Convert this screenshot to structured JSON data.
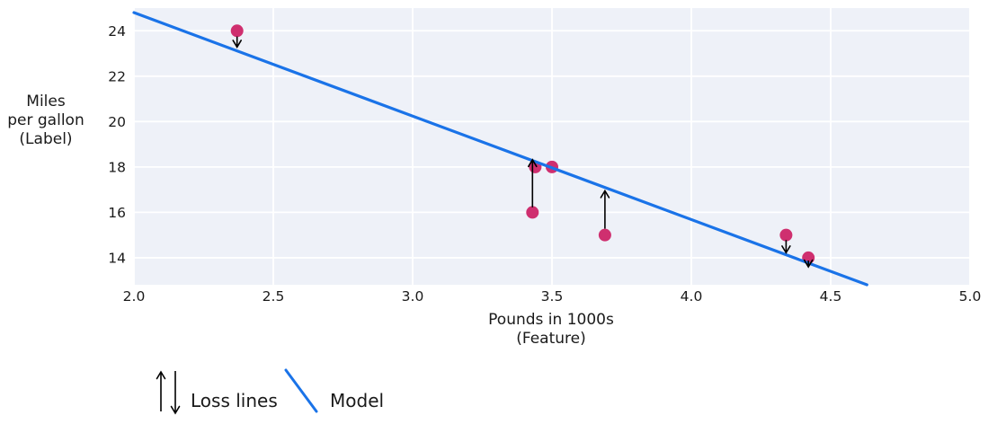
{
  "chart_data": {
    "type": "scatter",
    "title": "",
    "xlabel_lines": [
      "Pounds in 1000s",
      "(Feature)"
    ],
    "ylabel_lines": [
      "Miles",
      "per gallon",
      "(Label)"
    ],
    "xlim": [
      2.0,
      5.0
    ],
    "ylim": [
      12.81,
      25.0
    ],
    "grid": true,
    "xticks": [
      {
        "value": 2.0,
        "label": "2.0"
      },
      {
        "value": 2.5,
        "label": "2.5"
      },
      {
        "value": 3.0,
        "label": "3.0"
      },
      {
        "value": 3.5,
        "label": "3.5"
      },
      {
        "value": 4.0,
        "label": "4.0"
      },
      {
        "value": 4.5,
        "label": "4.5"
      },
      {
        "value": 5.0,
        "label": "5.0"
      }
    ],
    "yticks": [
      {
        "value": 14,
        "label": "14"
      },
      {
        "value": 16,
        "label": "16"
      },
      {
        "value": 18,
        "label": "18"
      },
      {
        "value": 20,
        "label": "20"
      },
      {
        "value": 22,
        "label": "22"
      },
      {
        "value": 24,
        "label": "24"
      }
    ],
    "points": [
      {
        "x": 2.37,
        "y": 24
      },
      {
        "x": 3.5,
        "y": 18
      },
      {
        "x": 3.44,
        "y": 18
      },
      {
        "x": 3.43,
        "y": 16
      },
      {
        "x": 3.69,
        "y": 15
      },
      {
        "x": 4.34,
        "y": 15
      },
      {
        "x": 4.42,
        "y": 14
      }
    ],
    "model_line": {
      "x1": 2.0,
      "y1": 24.8,
      "x2": 4.63,
      "y2": 12.81
    },
    "loss_lines": [
      {
        "x": 2.37,
        "from": 23.75,
        "to": 23.28,
        "dir": "down"
      },
      {
        "x": 3.43,
        "from": 16.22,
        "to": 18.32,
        "dir": "up"
      },
      {
        "x": 3.69,
        "from": 15.28,
        "to": 16.95,
        "dir": "up"
      },
      {
        "x": 4.34,
        "from": 14.78,
        "to": 14.22,
        "dir": "down"
      },
      {
        "x": 4.42,
        "from": 13.88,
        "to": 13.6,
        "dir": "down"
      }
    ],
    "colors": {
      "point": "#cf2f6f",
      "model": "#1a73e8",
      "arrow": "#000000",
      "plot_bg": "#eef1f8",
      "grid": "#ffffff",
      "text": "#1a1a1a"
    },
    "legend": [
      {
        "symbol": "loss-arrows",
        "label": "Loss lines"
      },
      {
        "symbol": "model-line",
        "label": "Model"
      }
    ]
  }
}
